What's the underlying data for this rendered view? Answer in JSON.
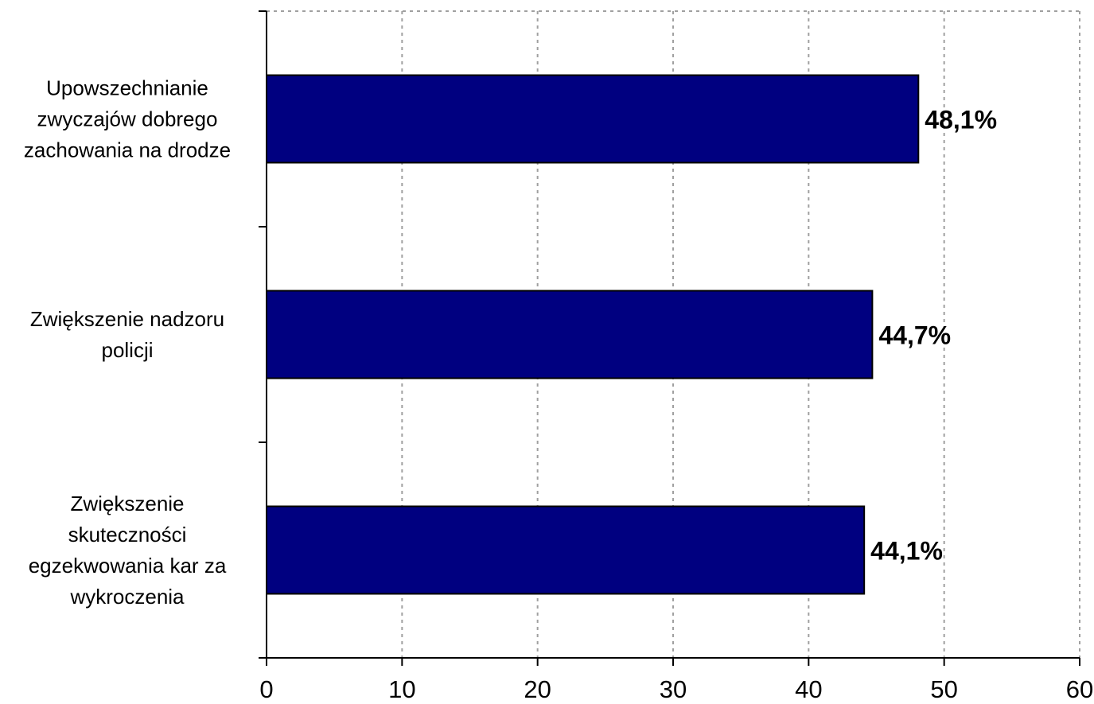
{
  "chart_data": {
    "type": "bar",
    "orientation": "horizontal",
    "categories": [
      "Upowszechnianie zwyczajów dobrego zachowania na drodze",
      "Zwiększenie nadzoru policji",
      "Zwiększenie skuteczności egzekwowania kar za wykroczenia"
    ],
    "category_lines": [
      [
        "Upowszechnianie",
        "zwyczajów dobrego",
        "zachowania na drodze"
      ],
      [
        "Zwiększenie nadzoru",
        "policji"
      ],
      [
        "Zwiększenie",
        "skuteczności",
        "egzekwowania kar za",
        "wykroczenia"
      ]
    ],
    "values": [
      48.1,
      44.7,
      44.1
    ],
    "data_labels": [
      "48,1%",
      "44,7%",
      "44,1%"
    ],
    "x_ticks": [
      0,
      10,
      20,
      30,
      40,
      50,
      60
    ],
    "xlim": [
      0,
      60
    ],
    "xlabel": "",
    "ylabel": "",
    "title": "",
    "grid": "vertical dotted",
    "legend": "none",
    "colors": {
      "bar_fill": "#000080",
      "bar_stroke": "#000000",
      "grid": "#a0a0a0",
      "axis": "#000000"
    }
  }
}
